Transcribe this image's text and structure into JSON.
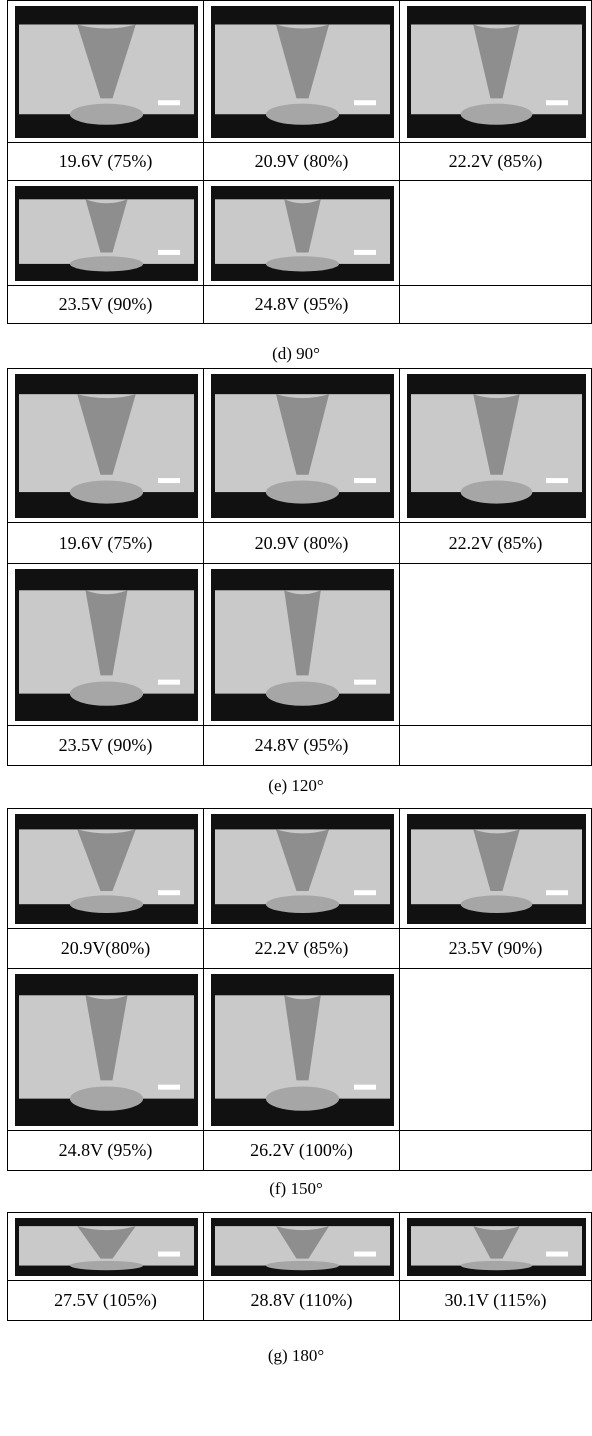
{
  "panels": [
    {
      "caption": "(d) 90°",
      "rows": [
        [
          "19.6V (75%)",
          "20.9V (80%)",
          "22.2V (85%)"
        ],
        [
          "23.5V (90%)",
          "24.8V (95%)"
        ]
      ]
    },
    {
      "caption": "(e) 120°",
      "rows": [
        [
          "19.6V (75%)",
          "20.9V (80%)",
          "22.2V (85%)"
        ],
        [
          "23.5V (90%)",
          "24.8V (95%)"
        ]
      ]
    },
    {
      "caption": "(f) 150°",
      "rows": [
        [
          "20.9V(80%)",
          "22.2V (85%)",
          "23.5V (90%)"
        ],
        [
          "24.8V (95%)",
          "26.2V (100%)"
        ]
      ]
    },
    {
      "caption": "(g) 180°",
      "rows": [
        [
          "27.5V (105%)",
          "28.8V (110%)",
          "30.1V (115%)"
        ]
      ]
    }
  ]
}
